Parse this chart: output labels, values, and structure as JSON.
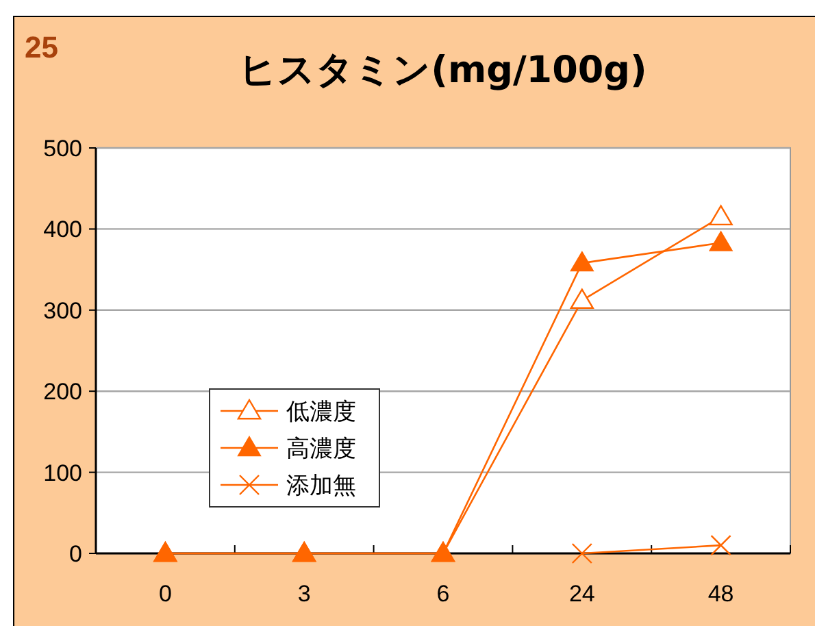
{
  "chart_data": {
    "type": "line",
    "title": "ヒスタミン(mg/100g)",
    "annotations": [
      "25"
    ],
    "categories": [
      "0",
      "3",
      "6",
      "24",
      "48"
    ],
    "ylim": [
      0,
      500
    ],
    "yticks": [
      0,
      100,
      200,
      300,
      400,
      500
    ],
    "grid": "y",
    "legend": "bottom left",
    "series": [
      {
        "name": "低濃度",
        "color": "#ff6600",
        "marker": "triangle-open",
        "values": [
          0,
          0,
          0,
          312,
          415
        ]
      },
      {
        "name": "高濃度",
        "color": "#ff6600",
        "marker": "triangle",
        "values": [
          0,
          0,
          0,
          358,
          383
        ]
      },
      {
        "name": "添加無",
        "color": "#ff6600",
        "marker": "cross",
        "values": [
          null,
          null,
          null,
          0,
          10
        ]
      }
    ]
  }
}
